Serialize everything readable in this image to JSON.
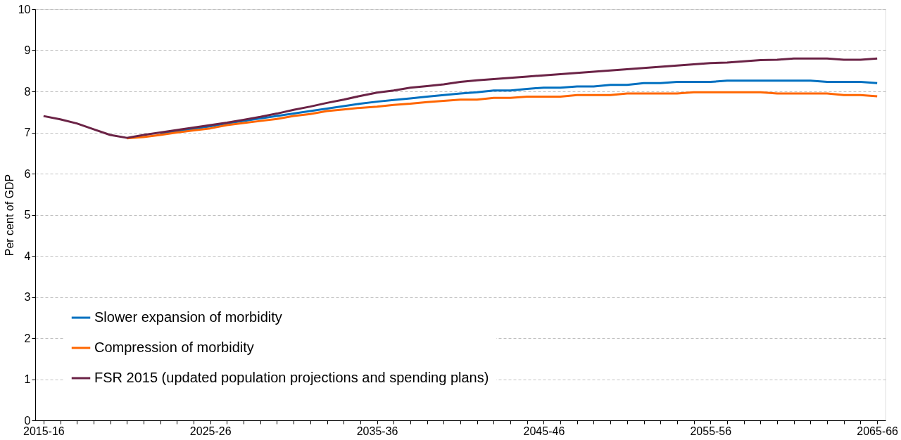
{
  "chart_data": {
    "type": "line",
    "ylabel": "Per cent of GDP",
    "categories": [
      "2015-16",
      null,
      null,
      null,
      null,
      null,
      null,
      null,
      null,
      null,
      "2025-26",
      null,
      null,
      null,
      null,
      null,
      null,
      null,
      null,
      null,
      "2035-36",
      null,
      null,
      null,
      null,
      null,
      null,
      null,
      null,
      null,
      "2045-46",
      null,
      null,
      null,
      null,
      null,
      null,
      null,
      null,
      null,
      "2055-56",
      null,
      null,
      null,
      null,
      null,
      null,
      null,
      null,
      null,
      "2065-66"
    ],
    "series": [
      {
        "name": "Slower expansion of morbidity",
        "color": "#0070c0",
        "values": [
          null,
          null,
          null,
          null,
          null,
          null,
          null,
          6.97,
          7.03,
          7.09,
          7.15,
          7.22,
          7.28,
          7.34,
          7.4,
          7.46,
          7.52,
          7.58,
          7.64,
          7.7,
          7.75,
          7.79,
          7.83,
          7.87,
          7.91,
          7.95,
          7.98,
          8.02,
          8.02,
          8.06,
          8.09,
          8.09,
          8.12,
          8.12,
          8.16,
          8.16,
          8.2,
          8.2,
          8.23,
          8.23,
          8.23,
          8.26,
          8.26,
          8.26,
          8.26,
          8.26,
          8.26,
          8.23,
          8.23,
          8.23,
          8.2
        ]
      },
      {
        "name": "Compression of morbidity",
        "color": "#ff6600",
        "values": [
          null,
          null,
          null,
          null,
          null,
          6.86,
          6.89,
          6.94,
          7.0,
          7.05,
          7.1,
          7.18,
          7.23,
          7.28,
          7.33,
          7.4,
          7.45,
          7.52,
          7.56,
          7.6,
          7.63,
          7.67,
          7.7,
          7.74,
          7.77,
          7.8,
          7.8,
          7.84,
          7.84,
          7.87,
          7.87,
          7.87,
          7.91,
          7.91,
          7.91,
          7.95,
          7.95,
          7.95,
          7.95,
          7.98,
          7.98,
          7.98,
          7.98,
          7.98,
          7.95,
          7.95,
          7.95,
          7.95,
          7.91,
          7.91,
          7.88
        ]
      },
      {
        "name": "FSR 2015 (updated population projections and spending plans)",
        "color": "#6b2346",
        "values": [
          7.4,
          7.32,
          7.22,
          7.08,
          6.94,
          6.87,
          6.94,
          7.0,
          7.06,
          7.12,
          7.18,
          7.24,
          7.31,
          7.38,
          7.46,
          7.55,
          7.63,
          7.72,
          7.8,
          7.89,
          7.97,
          8.02,
          8.09,
          8.13,
          8.17,
          8.23,
          8.27,
          8.3,
          8.33,
          8.36,
          8.39,
          8.42,
          8.45,
          8.48,
          8.51,
          8.54,
          8.57,
          8.6,
          8.63,
          8.66,
          8.69,
          8.7,
          8.73,
          8.76,
          8.77,
          8.8,
          8.8,
          8.8,
          8.77,
          8.77,
          8.8
        ]
      }
    ],
    "ylim": [
      0,
      10
    ],
    "yticks": [
      0,
      1,
      2,
      3,
      4,
      5,
      6,
      7,
      8,
      9,
      10
    ],
    "grid": "y",
    "legend": "bottom left",
    "marker": "none",
    "line_style": "solid"
  }
}
